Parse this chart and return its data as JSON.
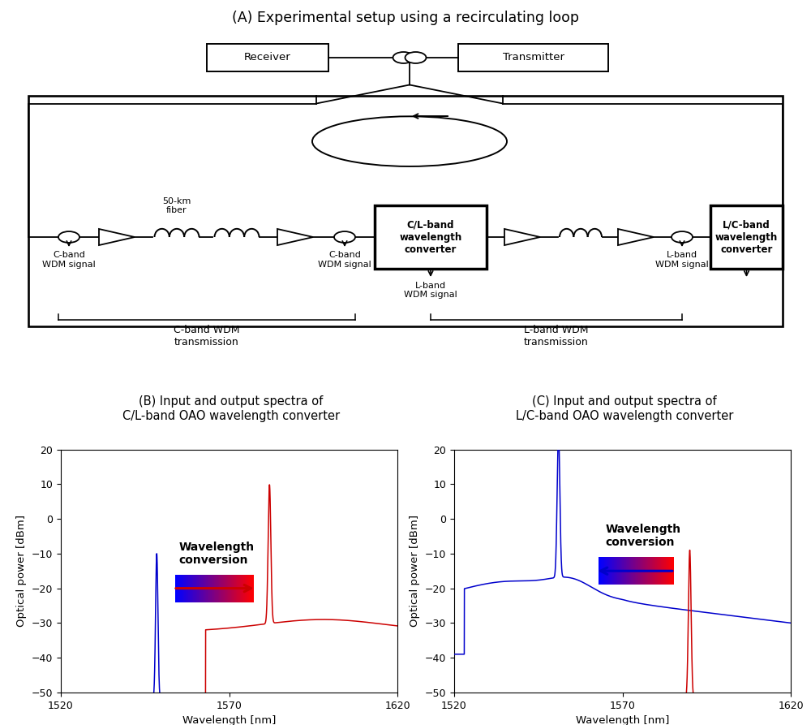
{
  "title_A": "(A) Experimental setup using a recirculating loop",
  "title_B": "(B) Input and output spectra of\nC/L-band OAO wavelength converter",
  "title_C": "(C) Input and output spectra of\nL/C-band OAO wavelength converter",
  "xlabel": "Wavelength [nm]",
  "ylabel": "Optical power [dBm]",
  "xlim": [
    1520,
    1620
  ],
  "ylim": [
    -50,
    20
  ],
  "yticks": [
    -50,
    -40,
    -30,
    -20,
    -10,
    0,
    10,
    20
  ],
  "xticks": [
    1520,
    1570,
    1620
  ],
  "background_color": "#ffffff",
  "text_color": "#000000",
  "blue_color": "#0000cc",
  "red_color": "#cc0000",
  "label_cband1": "C-band\nWDM signal",
  "label_cband2": "C-band\nWDM signal",
  "label_lband1": "L-band\nWDM signal",
  "label_lband2": "L-band\nWDM signal",
  "label_fiber": "50-km\nfiber",
  "label_cband_trans": "C-band WDM\ntransmission",
  "label_lband_trans": "L-band WDM\ntransmission",
  "label_cl_converter": "C/L-band\nwavelength\nconverter",
  "label_lc_converter": "L/C-band\nwavelength\nconverter",
  "label_receiver": "Receiver",
  "label_transmitter": "Transmitter",
  "wavelength_conv_text": "Wavelength\nconversion"
}
